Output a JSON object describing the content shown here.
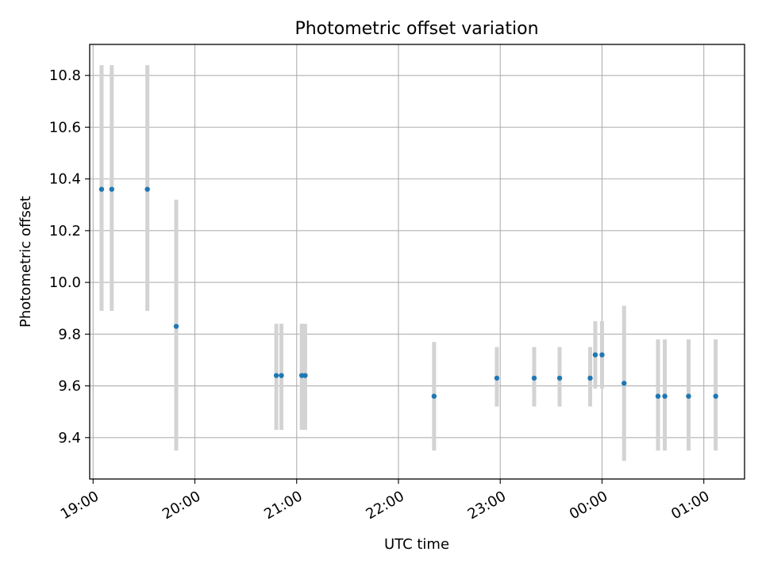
{
  "chart_data": {
    "type": "scatter",
    "title": "Photometric offset variation",
    "xlabel": "UTC time",
    "ylabel": "Photometric offset",
    "grid": true,
    "colors": {
      "points": "#1f77b4",
      "errorbars": "#d3d3d3",
      "grid": "#b0b0b0"
    },
    "xlim": [
      "18:58",
      "01:24"
    ],
    "ylim": [
      9.24,
      10.92
    ],
    "xticks": [
      "19:00",
      "20:00",
      "21:00",
      "22:00",
      "23:00",
      "00:00",
      "01:00"
    ],
    "yticks": [
      "9.4",
      "9.6",
      "9.8",
      "10.0",
      "10.2",
      "10.4",
      "10.6",
      "10.8"
    ],
    "points": [
      {
        "t": "19:05",
        "y": 10.36,
        "lo": 9.89,
        "hi": 10.84
      },
      {
        "t": "19:11",
        "y": 10.36,
        "lo": 9.89,
        "hi": 10.84
      },
      {
        "t": "19:32",
        "y": 10.36,
        "lo": 9.89,
        "hi": 10.84
      },
      {
        "t": "19:49",
        "y": 9.83,
        "lo": 9.35,
        "hi": 10.32
      },
      {
        "t": "20:48",
        "y": 9.64,
        "lo": 9.43,
        "hi": 9.84
      },
      {
        "t": "20:51",
        "y": 9.64,
        "lo": 9.43,
        "hi": 9.84
      },
      {
        "t": "21:03",
        "y": 9.64,
        "lo": 9.43,
        "hi": 9.84
      },
      {
        "t": "21:05",
        "y": 9.64,
        "lo": 9.43,
        "hi": 9.84
      },
      {
        "t": "22:21",
        "y": 9.56,
        "lo": 9.35,
        "hi": 9.77
      },
      {
        "t": "22:58",
        "y": 9.63,
        "lo": 9.52,
        "hi": 9.75
      },
      {
        "t": "23:20",
        "y": 9.63,
        "lo": 9.52,
        "hi": 9.75
      },
      {
        "t": "23:35",
        "y": 9.63,
        "lo": 9.52,
        "hi": 9.75
      },
      {
        "t": "23:53",
        "y": 9.63,
        "lo": 9.52,
        "hi": 9.75
      },
      {
        "t": "23:56",
        "y": 9.72,
        "lo": 9.59,
        "hi": 9.85
      },
      {
        "t": "00:00",
        "y": 9.72,
        "lo": 9.59,
        "hi": 9.85
      },
      {
        "t": "00:13",
        "y": 9.61,
        "lo": 9.31,
        "hi": 9.91
      },
      {
        "t": "00:33",
        "y": 9.56,
        "lo": 9.35,
        "hi": 9.78
      },
      {
        "t": "00:37",
        "y": 9.56,
        "lo": 9.35,
        "hi": 9.78
      },
      {
        "t": "00:51",
        "y": 9.56,
        "lo": 9.35,
        "hi": 9.78
      },
      {
        "t": "01:07",
        "y": 9.56,
        "lo": 9.35,
        "hi": 9.78
      }
    ]
  }
}
